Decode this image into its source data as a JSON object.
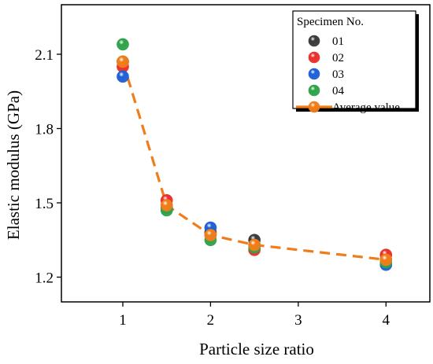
{
  "chart_data": {
    "type": "scatter",
    "xlabel": "Particle size ratio",
    "ylabel": "Elastic modulus (GPa)",
    "x_ticks": [
      "1",
      "2",
      "3",
      "4"
    ],
    "y_ticks": [
      "1.2",
      "1.5",
      "1.8",
      "2.1"
    ],
    "xlim": [
      0.3,
      4.5
    ],
    "ylim": [
      1.1,
      2.3
    ],
    "grid": false,
    "legend": {
      "title": "Specimen No.",
      "position": "top-right"
    },
    "series": [
      {
        "name": "01",
        "kind": "scatter",
        "color": "#3a3a3a",
        "x": [
          1,
          1.5,
          2,
          2.5,
          4
        ],
        "y": [
          2.07,
          1.49,
          1.38,
          1.35,
          1.27
        ]
      },
      {
        "name": "02",
        "kind": "scatter",
        "color": "#e8302a",
        "x": [
          1,
          1.5,
          2,
          2.5,
          4
        ],
        "y": [
          2.05,
          1.51,
          1.37,
          1.31,
          1.29
        ]
      },
      {
        "name": "03",
        "kind": "scatter",
        "color": "#1f5fd6",
        "x": [
          1,
          1.5,
          2,
          2.5,
          4
        ],
        "y": [
          2.01,
          1.48,
          1.4,
          1.33,
          1.25
        ]
      },
      {
        "name": "04",
        "kind": "scatter",
        "color": "#2ea34a",
        "x": [
          1,
          1.5,
          2,
          2.5,
          4
        ],
        "y": [
          2.14,
          1.47,
          1.35,
          1.32,
          1.26
        ]
      },
      {
        "name": "Average value",
        "kind": "line",
        "line_style": "dashed",
        "color": "#f07d1a",
        "x": [
          1,
          1.5,
          2,
          2.5,
          4
        ],
        "y": [
          2.07,
          1.49,
          1.37,
          1.33,
          1.27
        ]
      }
    ]
  }
}
